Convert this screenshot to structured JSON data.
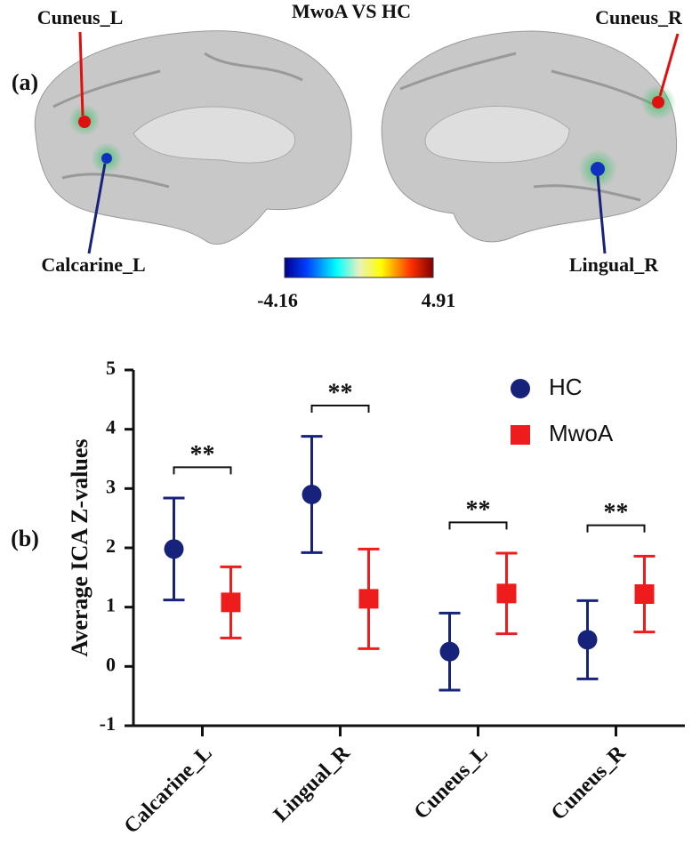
{
  "panel_a": {
    "label": "(a)",
    "title": "MwoA VS HC",
    "regions": [
      "Cuneus_L",
      "Calcarine_L",
      "Cuneus_R",
      "Lingual_R"
    ],
    "colorbar": {
      "min": -4.16,
      "max": 4.91
    }
  },
  "chart_data": {
    "type": "errorbar",
    "panel_label": "(b)",
    "ylabel": "Average  ICA  Z-values",
    "categories": [
      "Calcarine_L",
      "Lingual_R",
      "Cuneus_L",
      "Cuneus_R"
    ],
    "series": [
      {
        "name": "HC",
        "color": "#17237a",
        "marker": "circle",
        "values": [
          1.98,
          2.9,
          0.25,
          0.45
        ],
        "errors": [
          0.86,
          0.98,
          0.65,
          0.66
        ]
      },
      {
        "name": "MwoA",
        "color": "#ee1c1c",
        "marker": "square",
        "values": [
          1.08,
          1.14,
          1.23,
          1.22
        ],
        "errors": [
          0.6,
          0.84,
          0.68,
          0.64
        ]
      }
    ],
    "annotations": [
      "**",
      "**",
      "**",
      "**"
    ],
    "ylim": [
      -1,
      5
    ],
    "yticks": [
      -1,
      0,
      1,
      2,
      3,
      4,
      5
    ],
    "legend": "upper right"
  }
}
